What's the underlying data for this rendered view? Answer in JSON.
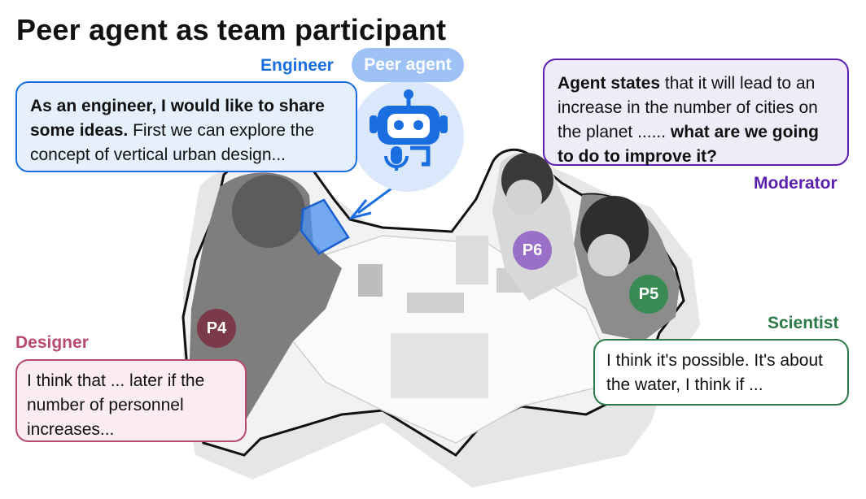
{
  "title": "Peer agent as team participant",
  "peer_agent": {
    "label": "Peer agent",
    "icon": "robot-with-microphone-icon"
  },
  "engineer": {
    "role": "Engineer",
    "bold": "As an engineer, I would like to share some ideas.",
    "text": " First we can explore the concept of vertical urban design...",
    "color": "#1a6ee0"
  },
  "moderator": {
    "role": "Moderator",
    "bold1": "Agent states",
    "text1": " that it will lead to an increase in the number of cities on the planet ...... ",
    "bold2": "what are we going to do to improve it?",
    "color": "#5b1fb0"
  },
  "designer": {
    "role": "Designer",
    "text": "I think that ... later if the number of personnel increases...",
    "color": "#b84a6e"
  },
  "scientist": {
    "role": "Scientist",
    "text": "I think it's possible. It's about the water, I think if ...",
    "color": "#2a7a45"
  },
  "participants": [
    {
      "id": "P4",
      "color": "#7a3a4a"
    },
    {
      "id": "P6",
      "color": "#9a6fc8"
    },
    {
      "id": "P5",
      "color": "#3a8a55"
    }
  ]
}
